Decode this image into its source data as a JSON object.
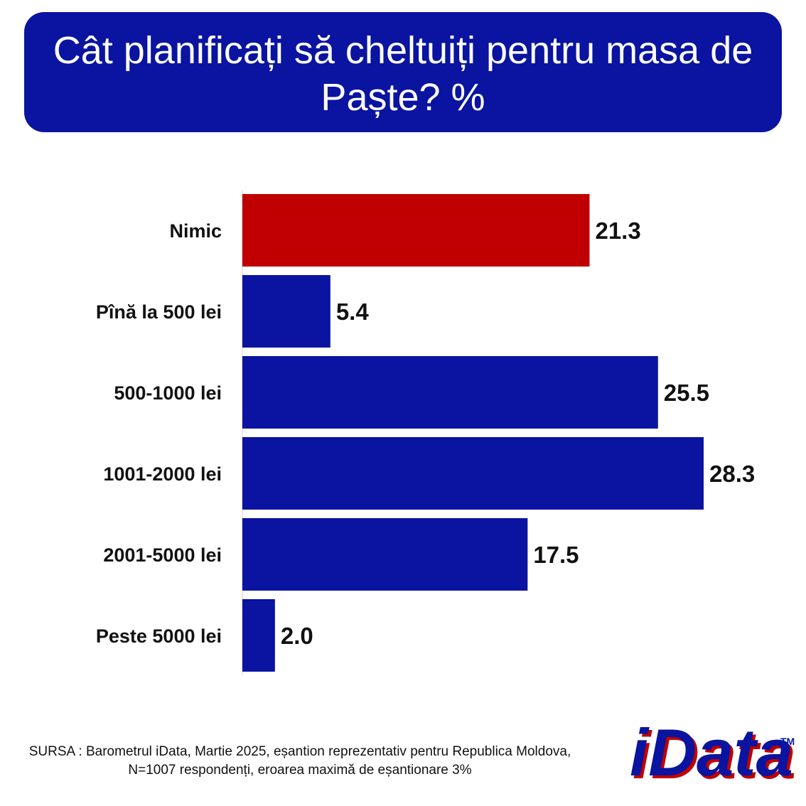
{
  "title": "Cât planificați să cheltuiți pentru masa de Paște? %",
  "source": "SURSA : Barometrul iData, Martie 2025, eșantion reprezentativ pentru Republica Moldova, N=1007 respondenți, eroarea maximă de eșantionare 3%",
  "logo": {
    "text": "iData",
    "trademark": "TM"
  },
  "colors": {
    "header_bg": "#0a14a0",
    "bar": "#0a14a0",
    "highlight": "#c00000",
    "logo": "#0a14a0",
    "logo_shadow": "#c00000"
  },
  "chart_data": {
    "type": "bar",
    "orientation": "horizontal",
    "categories": [
      "Nimic",
      "Pînă la 500 lei",
      "500-1000 lei",
      "1001-2000 lei",
      "2001-5000 lei",
      "Peste 5000 lei"
    ],
    "values": [
      21.3,
      5.4,
      25.5,
      28.3,
      17.5,
      2.0
    ],
    "value_labels": [
      "21.3",
      "5.4",
      "25.5",
      "28.3",
      "17.5",
      "2.0"
    ],
    "highlight_index": 0,
    "xlim": [
      0,
      28.3
    ],
    "grid": false,
    "legend": "none"
  }
}
